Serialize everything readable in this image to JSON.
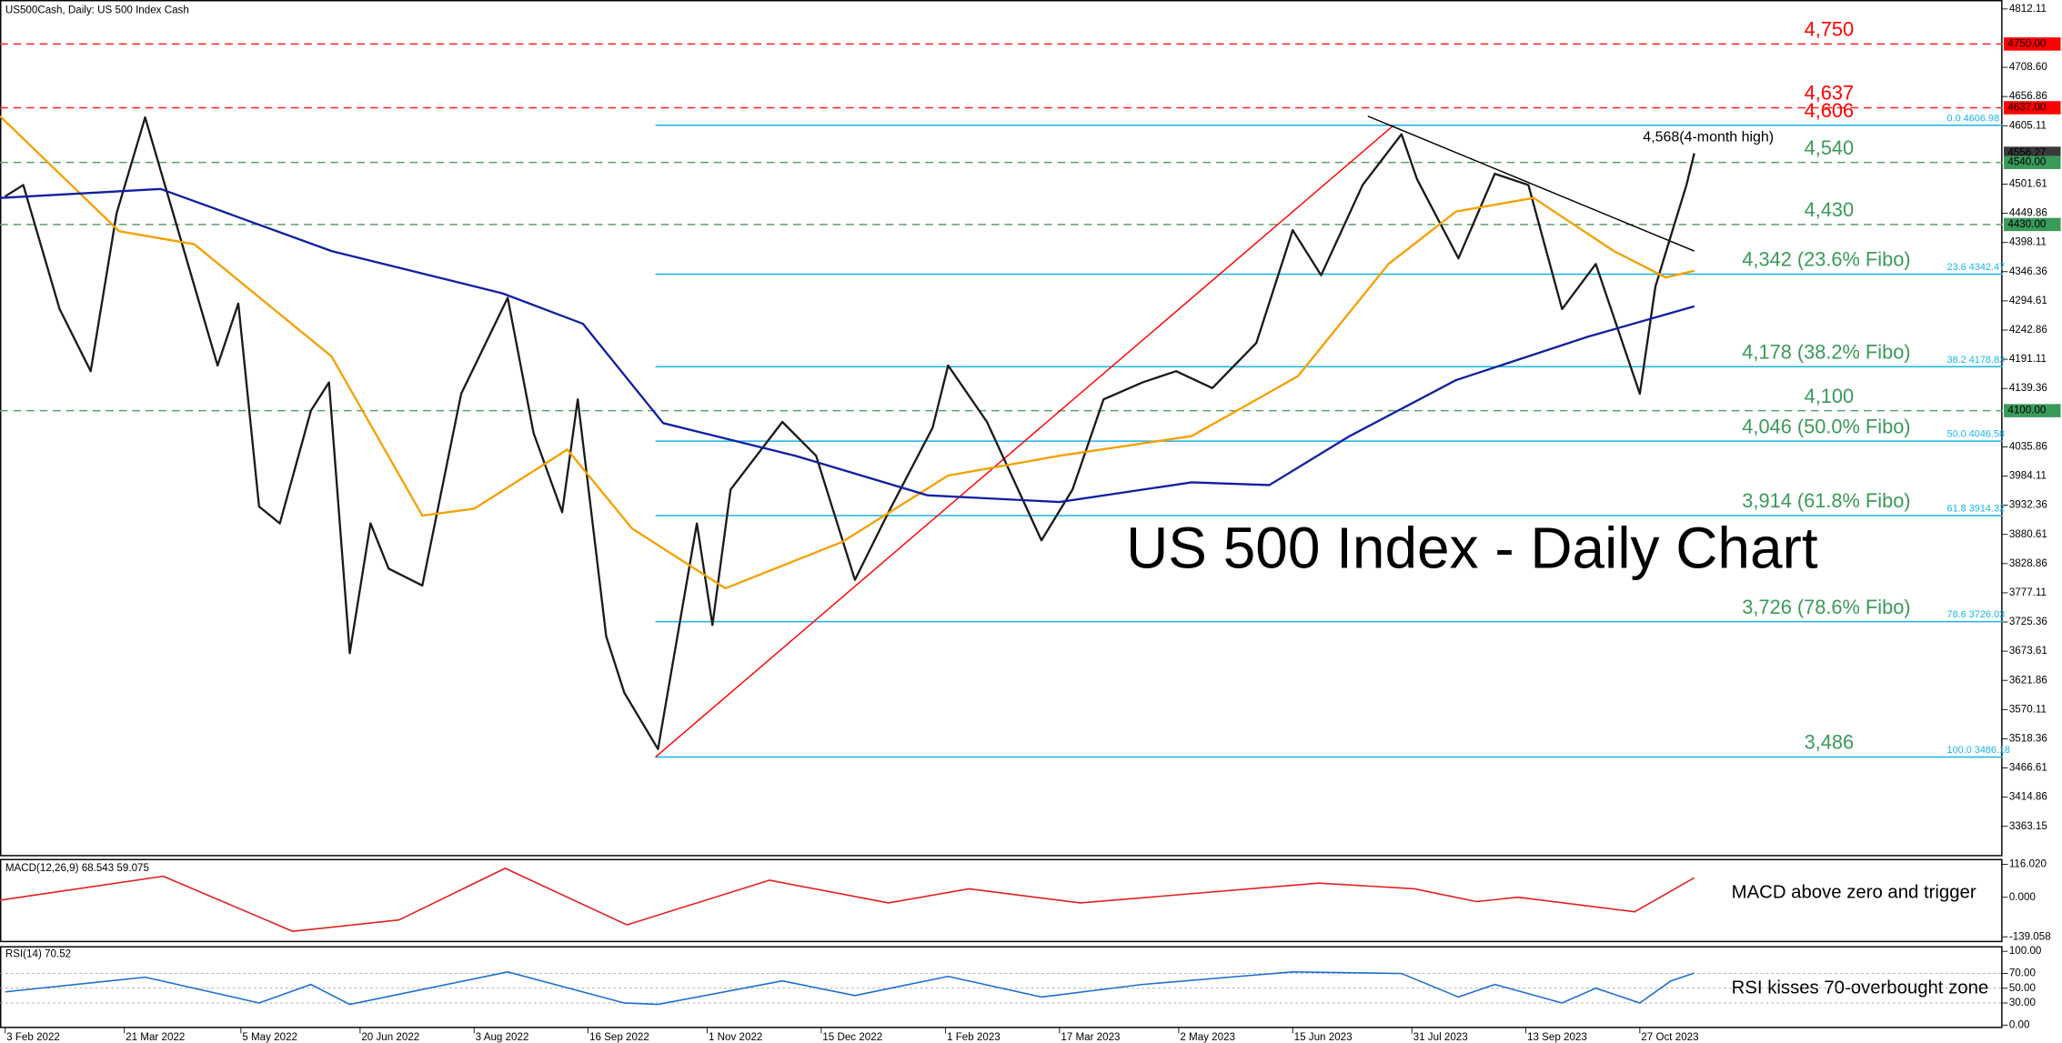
{
  "header": "US500Cash, Daily:  US 500 Index Cash",
  "chart_data": [
    {
      "type": "line",
      "title": "US 500 Index - Daily Chart",
      "high_label": "4,568(4-month high)",
      "xlim": [
        "1 Feb 2022",
        "15 Mar 2024"
      ],
      "ylim": [
        3310,
        4828
      ],
      "xticks": [
        "3 Feb 2022",
        "21 Mar 2022",
        "5 May 2022",
        "20 Jun 2022",
        "3 Aug 2022",
        "16 Sep 2022",
        "1 Nov 2022",
        "15 Dec 2022",
        "1 Feb 2023",
        "17 Mar 2023",
        "2 May 2023",
        "15 Jun 2023",
        "31 Jul 2023",
        "13 Sep 2023",
        "27 Oct 2023"
      ],
      "yticks": [
        4812.11,
        {
          "value": 4708.6,
          "label": "4708.60"
        },
        4656.86,
        4605.11,
        4501.61,
        4449.86,
        4398.11,
        4346.36,
        4294.61,
        4242.86,
        4191.11,
        4139.36,
        4035.86,
        3984.11,
        3932.36,
        3880.61,
        3828.86,
        3777.11,
        3725.36,
        3673.61,
        3621.86,
        3570.11,
        3518.36,
        3466.61,
        3414.86,
        3363.15
      ],
      "series": [
        {
          "color": "#1a1a1a",
          "x": [
            "3 Feb 2022",
            "10 Feb 2022",
            "24 Feb 2022",
            "8 Mar 2022",
            "18 Mar 2022",
            "29 Mar 2022",
            "12 Apr 2022",
            "26 Apr 2022",
            "4 May 2022",
            "12 May 2022",
            "20 May 2022",
            "1 Jun 2022",
            "8 Jun 2022",
            "16 Jun 2022",
            "24 Jun 2022",
            "1 Jul 2022",
            "14 Jul 2022",
            "29 Jul 2022",
            "16 Aug 2022",
            "26 Aug 2022",
            "6 Sep 2022",
            "12 Sep 2022",
            "23 Sep 2022",
            "30 Sep 2022",
            "13 Oct 2022",
            "28 Oct 2022",
            "3 Nov 2022",
            "10 Nov 2022",
            "30 Nov 2022",
            "13 Dec 2022",
            "28 Dec 2022",
            "10 Jan 2023",
            "27 Jan 2023",
            "2 Feb 2023",
            "17 Feb 2023",
            "10 Mar 2023",
            "22 Mar 2023",
            "3 Apr 2023",
            "18 Apr 2023",
            "1 May 2023",
            "15 May 2023",
            "1 Jun 2023",
            "15 Jun 2023",
            "26 Jun 2023",
            "12 Jul 2023",
            "27 Jul 2023",
            "2 Aug 2023",
            "18 Aug 2023",
            "1 Sep 2023",
            "14 Sep 2023",
            "27 Sep 2023",
            "10 Oct 2023",
            "27 Oct 2023",
            "2 Nov 2023",
            "8 Nov 2023",
            "14 Nov 2023",
            "17 Nov 2023"
          ],
          "values": [
            4480,
            4500,
            4280,
            4170,
            4450,
            4620,
            4400,
            4180,
            4290,
            3930,
            3900,
            4100,
            4150,
            3670,
            3900,
            3820,
            3790,
            4130,
            4300,
            4060,
            3920,
            4120,
            3700,
            3600,
            3500,
            3900,
            3720,
            3960,
            4080,
            4020,
            3800,
            3920,
            4070,
            4180,
            4080,
            3870,
            3960,
            4120,
            4150,
            4170,
            4140,
            4220,
            4420,
            4340,
            4500,
            4590,
            4510,
            4370,
            4520,
            4500,
            4280,
            4360,
            4130,
            4320,
            4410,
            4500,
            4556.27
          ]
        },
        {
          "color": "#f5a000",
          "x": [
            "1 Feb 2022",
            "19 Mar 2022",
            "17 Apr 2022",
            "9 Jun 2022",
            "14 Jul 2022",
            "3 Aug 2022",
            "8 Sep 2022",
            "3 Oct 2022",
            "8 Nov 2022",
            "23 Dec 2022",
            "2 Feb 2023",
            "17 Mar 2023",
            "7 May 2023",
            "17 Jun 2023",
            "22 Jul 2023",
            "17 Aug 2023",
            "16 Sep 2023",
            "17 Oct 2023",
            "6 Nov 2023",
            "17 Nov 2023"
          ],
          "values": [
            4622,
            4418,
            4395,
            4196,
            3914,
            3926,
            4031,
            3891,
            3785,
            3867,
            3985,
            4020,
            4055,
            4161,
            4360,
            4453,
            4477,
            4383,
            4336,
            4348
          ]
        },
        {
          "color": "#1020a0",
          "x": [
            "1 Feb 2022",
            "4 Apr 2022",
            "9 Jun 2022",
            "14 Aug 2022",
            "14 Sep 2022",
            "15 Oct 2022",
            "5 Dec 2022",
            "25 Jan 2023",
            "17 Mar 2023",
            "7 May 2023",
            "6 Jun 2023",
            "7 Jul 2023",
            "17 Aug 2023",
            "7 Oct 2023",
            "17 Nov 2023"
          ],
          "values": [
            4477,
            4493,
            4383,
            4308,
            4254,
            4078,
            4020,
            3950,
            3938,
            3973,
            3968,
            4055,
            4154,
            4231,
            4285
          ]
        }
      ],
      "trendlines": [
        {
          "color": "#ff0000",
          "x": [
            "12 Oct 2022",
            "24 Jul 2023"
          ],
          "values": [
            3486,
            4606
          ]
        },
        {
          "color": "#000000",
          "x": [
            "14 Jul 2023",
            "17 Nov 2023"
          ],
          "values": [
            4622,
            4383
          ]
        }
      ],
      "levels": [
        {
          "value": 4750,
          "label": "4,750",
          "line_color": "#ff2020",
          "text_color": "#ff0000",
          "dashed": true
        },
        {
          "value": 4637,
          "label": "4,637",
          "line_color": "#ff2020",
          "text_color": "#ff0000",
          "dashed": true
        },
        {
          "value": 4606,
          "label": "4,606",
          "line_color": "#19b4e6",
          "text_color": "#ff0000",
          "dashed": false,
          "fibo": "0.0 4606.98"
        },
        {
          "value": 4540,
          "label": "4,540",
          "line_color": "#5f9f6f",
          "text_color": "#3a9a5a",
          "dashed": true
        },
        {
          "value": 4430,
          "label": "4,430",
          "line_color": "#5f9f6f",
          "text_color": "#3a9a5a",
          "dashed": true
        },
        {
          "value": 4342,
          "label": "4,342 (23.6% Fibo)",
          "line_color": "#19b4e6",
          "text_color": "#3a9a5a",
          "dashed": false,
          "fibo": "23.6 4342.47"
        },
        {
          "value": 4178,
          "label": "4,178 (38.2% Fibo)",
          "line_color": "#19b4e6",
          "text_color": "#3a9a5a",
          "dashed": false,
          "fibo": "38.2 4178.83"
        },
        {
          "value": 4100,
          "label": "4,100",
          "line_color": "#5f9f6f",
          "text_color": "#3a9a5a",
          "dashed": true
        },
        {
          "value": 4046,
          "label": "4,046 (50.0% Fibo)",
          "line_color": "#19b4e6",
          "text_color": "#3a9a5a",
          "dashed": false,
          "fibo": "50.0 4046.58"
        },
        {
          "value": 3914,
          "label": "3,914 (61.8% Fibo)",
          "line_color": "#19b4e6",
          "text_color": "#3a9a5a",
          "dashed": false,
          "fibo": "61.8 3914.32"
        },
        {
          "value": 3726,
          "label": "3,726 (78.6% Fibo)",
          "line_color": "#19b4e6",
          "text_color": "#3a9a5a",
          "dashed": false,
          "fibo": "78.6 3726.03"
        },
        {
          "value": 3486,
          "label": "3,486",
          "line_color": "#19b4e6",
          "text_color": "#3a9a5a",
          "dashed": false,
          "fibo": "100.0 3486.18"
        }
      ],
      "price_tags": [
        {
          "value": {
            "value": 4750,
            "label": "4750.00"
          },
          "color": "#ff0000"
        },
        {
          "value": {
            "value": 4637,
            "label": "4637.00"
          },
          "color": "#ff0000"
        },
        {
          "value": 4556.27,
          "color": "#3a3a3a"
        },
        {
          "value": {
            "value": 4540,
            "label": "4540.00"
          },
          "color": "#3a9a5a"
        },
        {
          "value": {
            "value": 4430,
            "label": "4430.00"
          },
          "color": "#3a9a5a"
        },
        {
          "value": {
            "value": 4100,
            "label": "4100.00"
          },
          "color": "#3a9a5a"
        }
      ]
    },
    {
      "type": "line",
      "label": "MACD(12,26,9) 68.543 59.075",
      "annotation": "MACD above zero and trigger",
      "xlim": [
        "1 Feb 2022",
        "15 Mar 2024"
      ],
      "ylim": [
        -158,
        135
      ],
      "yticks": [
        {
          "value": 116.02,
          "label": "116.020"
        },
        {
          "value": 0,
          "label": "0.000"
        },
        -139.058
      ],
      "series": [
        {
          "color": "#e02020",
          "x": [
            "1 Feb 2022",
            "5 Apr 2022",
            "25 May 2022",
            "5 Jul 2022",
            "15 Aug 2022",
            "1 Oct 2022",
            "25 Nov 2022",
            "10 Jan 2023",
            "10 Feb 2023",
            "25 Mar 2023",
            "25 Jun 2023",
            "1 Aug 2023",
            "25 Aug 2023",
            "10 Sep 2023",
            "25 Oct 2023",
            "17 Nov 2023"
          ],
          "values": [
            -10,
            74,
            -120,
            -80,
            102,
            -97,
            60,
            -20,
            30,
            -20,
            50,
            30,
            -15,
            0,
            -51,
            68.543
          ]
        }
      ]
    },
    {
      "type": "line",
      "label": "RSI(14) 70.52",
      "annotation": "RSI kisses 70-overbought zone",
      "xlim": [
        "1 Feb 2022",
        "15 Mar 2024"
      ],
      "ylim": [
        -4,
        107
      ],
      "yticks": [
        {
          "value": 100,
          "label": "100.00"
        },
        {
          "value": 70,
          "label": "70.00"
        },
        {
          "value": 50,
          "label": "50.00"
        },
        {
          "value": 30,
          "label": "30.00"
        },
        {
          "value": 0,
          "label": "0.00"
        }
      ],
      "series": [
        {
          "color": "#1e6fd0",
          "x": [
            "3 Feb 2022",
            "29 Mar 2022",
            "12 May 2022",
            "1 Jun 2022",
            "16 Jun 2022",
            "16 Aug 2022",
            "30 Sep 2022",
            "13 Oct 2022",
            "30 Nov 2022",
            "28 Dec 2022",
            "2 Feb 2023",
            "10 Mar 2023",
            "18 Apr 2023",
            "15 Jun 2023",
            "27 Jul 2023",
            "18 Aug 2023",
            "1 Sep 2023",
            "27 Sep 2023",
            "10 Oct 2023",
            "27 Oct 2023",
            "8 Nov 2023",
            "17 Nov 2023"
          ],
          "values": [
            45,
            65,
            30,
            55,
            28,
            72,
            30,
            28,
            60,
            40,
            66,
            38,
            55,
            72,
            70,
            38,
            55,
            30,
            50,
            30,
            60,
            70.52
          ]
        }
      ]
    }
  ]
}
